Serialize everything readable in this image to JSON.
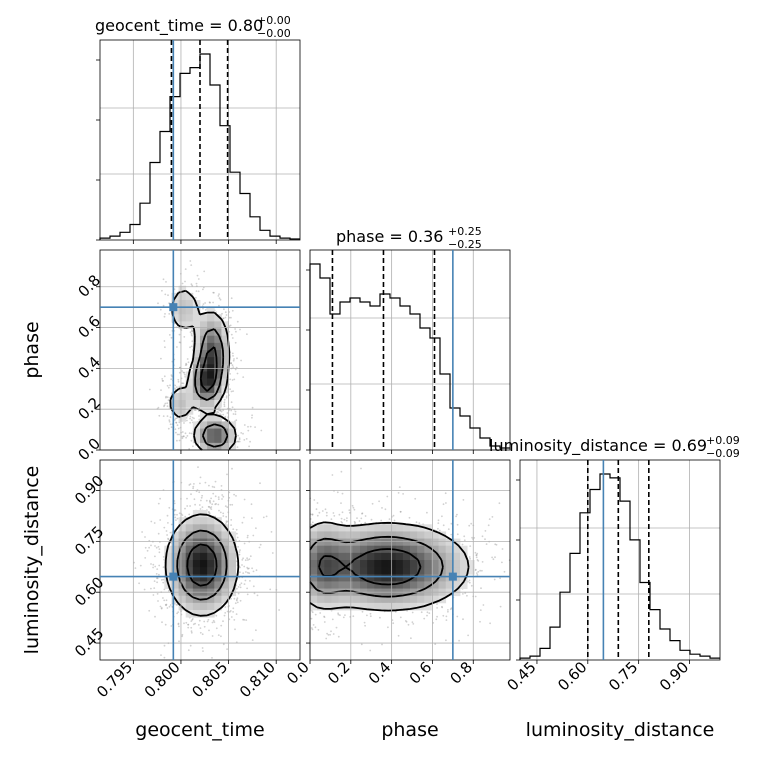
{
  "chart_data": {
    "type": "corner",
    "parameters": [
      "geocent_time",
      "phase",
      "luminosity_distance"
    ],
    "colors": {
      "truth": "#4682b4",
      "hist": "#000000",
      "grid": "#b0b0b0"
    },
    "grid": true,
    "titles": [
      {
        "name": "geocent_time",
        "median": "0.80",
        "plus": "+0.00",
        "minus": "−0.00"
      },
      {
        "name": "phase",
        "median": "0.36",
        "plus": "+0.25",
        "minus": "−0.25"
      },
      {
        "name": "luminosity_distance",
        "median": "0.69",
        "plus": "+0.09",
        "minus": "−0.09"
      }
    ],
    "axes": {
      "geocent_time": {
        "range": [
          0.7915,
          0.8125
        ],
        "ticks": [
          0.795,
          0.8,
          0.805,
          0.81
        ],
        "ticklabels": [
          "0.795",
          "0.800",
          "0.805",
          "0.810"
        ]
      },
      "phase": {
        "range": [
          0.0,
          0.98
        ],
        "ticks": [
          0.0,
          0.2,
          0.4,
          0.6,
          0.8
        ],
        "ticklabels": [
          "0.0",
          "0.2",
          "0.4",
          "0.6",
          "0.8"
        ]
      },
      "luminosity_distance": {
        "range": [
          0.4,
          0.99
        ],
        "ticks": [
          0.45,
          0.6,
          0.75,
          0.9
        ],
        "ticklabels": [
          "0.45",
          "0.60",
          "0.75",
          "0.90"
        ]
      }
    },
    "truths": {
      "geocent_time": 0.7992,
      "phase": 0.7,
      "luminosity_distance": 0.646
    },
    "quantiles": {
      "geocent_time": [
        0.799,
        0.802,
        0.8049
      ],
      "phase": [
        0.11,
        0.36,
        0.61
      ],
      "luminosity_distance": [
        0.6,
        0.69,
        0.78
      ]
    },
    "histograms": {
      "geocent_time": {
        "edges": [
          0.7915,
          0.79255,
          0.7936,
          0.79465,
          0.7957,
          0.79675,
          0.7978,
          0.79885,
          0.7999,
          0.80095,
          0.802,
          0.80305,
          0.8041,
          0.80515,
          0.8062,
          0.80725,
          0.8083,
          0.80935,
          0.8104,
          0.81145,
          0.8125
        ],
        "counts": [
          1,
          2,
          4,
          8,
          19,
          40,
          56,
          74,
          86,
          89,
          96,
          80,
          59,
          35,
          24,
          12,
          5,
          2,
          1,
          0.5
        ]
      },
      "phase": {
        "edges": [
          0.0,
          0.049,
          0.098,
          0.147,
          0.196,
          0.245,
          0.294,
          0.343,
          0.392,
          0.441,
          0.49,
          0.539,
          0.588,
          0.637,
          0.686,
          0.735,
          0.784,
          0.833,
          0.882,
          0.931,
          0.98
        ],
        "counts": [
          93,
          86,
          68,
          74,
          76,
          74,
          72,
          78,
          76,
          72,
          68,
          61,
          56,
          38,
          21,
          17,
          11,
          6,
          2,
          1
        ]
      },
      "luminosity_distance": {
        "edges": [
          0.4,
          0.4295,
          0.459,
          0.4885,
          0.518,
          0.5475,
          0.577,
          0.6065,
          0.636,
          0.6655,
          0.695,
          0.7245,
          0.754,
          0.7835,
          0.813,
          0.8425,
          0.872,
          0.9015,
          0.931,
          0.9605,
          0.99
        ],
        "counts": [
          1,
          2,
          6,
          17,
          35,
          55,
          76,
          88,
          96,
          94,
          82,
          62,
          40,
          26,
          16,
          10,
          5,
          3,
          2,
          1
        ]
      }
    },
    "densities": {
      "phase_vs_geocent_time": {
        "components": [
          {
            "cx": 0.8033,
            "cy": 0.47,
            "sx": 0.00095,
            "sy": 0.11,
            "w": 1.0
          },
          {
            "cx": 0.8026,
            "cy": 0.33,
            "sx": 0.0009,
            "sy": 0.07,
            "w": 0.9
          },
          {
            "cx": 0.8036,
            "cy": 0.07,
            "sx": 0.0012,
            "sy": 0.05,
            "w": 0.95
          },
          {
            "cx": 0.8003,
            "cy": 0.69,
            "sx": 0.0011,
            "sy": 0.08,
            "w": 0.35
          },
          {
            "cx": 0.7999,
            "cy": 0.23,
            "sx": 0.0009,
            "sy": 0.06,
            "w": 0.35
          }
        ]
      },
      "luminosity_distance_vs_geocent_time": {
        "components": [
          {
            "cx": 0.8022,
            "cy": 0.68,
            "sx": 0.0019,
            "sy": 0.075,
            "w": 1.0
          }
        ]
      },
      "luminosity_distance_vs_phase": {
        "components": [
          {
            "cx": 0.38,
            "cy": 0.675,
            "sx": 0.2,
            "sy": 0.065,
            "w": 1.0
          },
          {
            "cx": 0.06,
            "cy": 0.68,
            "sx": 0.07,
            "sy": 0.07,
            "w": 0.5
          }
        ]
      }
    }
  }
}
